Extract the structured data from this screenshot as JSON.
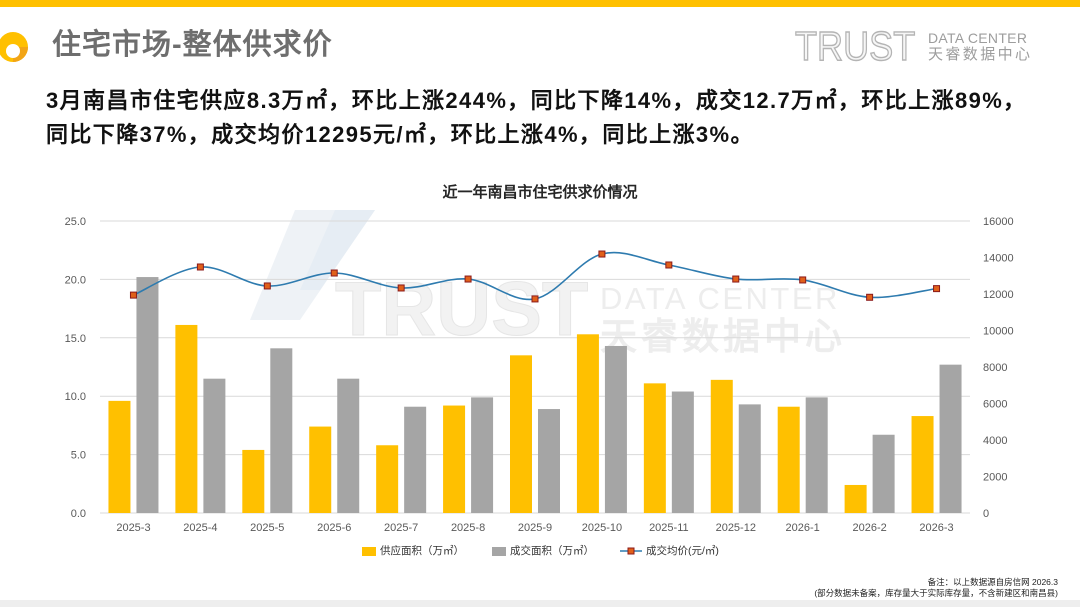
{
  "header": {
    "title": "住宅市场-整体供求价",
    "accent_color": "#FFC000",
    "brand": {
      "mark": "TRUST",
      "line1": "DATA CENTER",
      "line2": "天睿数据中心"
    }
  },
  "summary": {
    "lines": [
      "3月南昌市住宅供应8.3万㎡，环比上涨244%，同比下降14%，成交12.7万㎡，环比上涨89%，",
      "同比下降37%，成交均价12295元/㎡，环比上涨4%，同比上涨3%。"
    ]
  },
  "watermark": {
    "mark": "TRUST",
    "line1": "DATA CENTER",
    "line2": "天睿数据中心"
  },
  "chart_data": {
    "type": "bar",
    "title": "近一年南昌市住宅供求价情况",
    "categories": [
      "2025-3",
      "2025-4",
      "2025-5",
      "2025-6",
      "2025-7",
      "2025-8",
      "2025-9",
      "2025-10",
      "2025-11",
      "2025-12",
      "2026-1",
      "2026-2",
      "2026-3"
    ],
    "series": [
      {
        "name": "供应面积（万㎡）",
        "type": "bar",
        "axis": "left",
        "color": "#FFC000",
        "values": [
          9.6,
          16.1,
          5.4,
          7.4,
          5.8,
          9.2,
          13.5,
          15.3,
          11.1,
          11.4,
          9.1,
          2.4,
          8.3
        ]
      },
      {
        "name": "成交面积（万㎡）",
        "type": "bar",
        "axis": "left",
        "color": "#A5A5A5",
        "values": [
          20.2,
          11.5,
          14.1,
          11.5,
          9.1,
          9.9,
          8.9,
          14.3,
          10.4,
          9.3,
          9.9,
          6.7,
          12.7
        ]
      },
      {
        "name": "成交均价(元/㎡)",
        "type": "line",
        "axis": "right",
        "color": "#2E7BAF",
        "marker_fill": "#E0601A",
        "marker_stroke": "#8B1A1A",
        "values": [
          11940,
          13480,
          12440,
          13150,
          12330,
          12820,
          11730,
          14190,
          13590,
          12820,
          12770,
          11820,
          12295
        ]
      }
    ],
    "y_left": {
      "min": 0,
      "max": 25,
      "ticks": [
        "0.0",
        "5.0",
        "10.0",
        "15.0",
        "20.0",
        "25.0"
      ]
    },
    "y_right": {
      "min": 0,
      "max": 16000,
      "ticks": [
        "0",
        "2000",
        "4000",
        "6000",
        "8000",
        "10000",
        "12000",
        "14000",
        "16000"
      ]
    },
    "grid": true,
    "legend_position": "bottom"
  },
  "footer": {
    "note": "备注：以上数据源自房信网  2026.3",
    "disclaimer": "(部分数据未备案，库存量大于实际库存量，不含新建区和南昌县)"
  }
}
